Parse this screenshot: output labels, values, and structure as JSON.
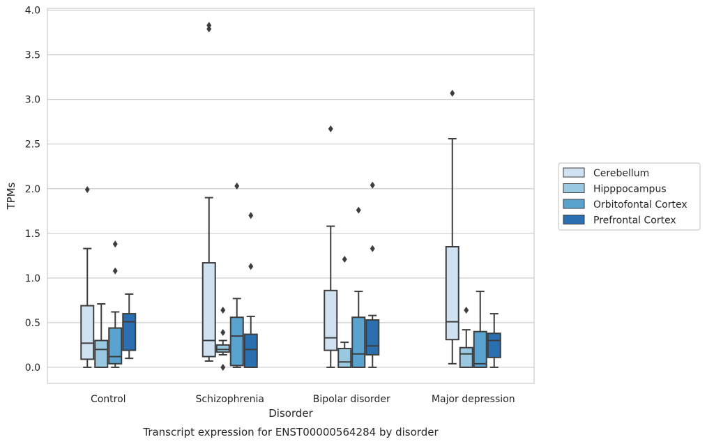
{
  "chart_data": {
    "type": "box",
    "title": "Transcript expression for ENST00000564284 by disorder",
    "xlabel": "Disorder",
    "ylabel": "TPMs",
    "ylim": [
      -0.18,
      4.02
    ],
    "yticks": [
      "0.0",
      "0.5",
      "1.0",
      "1.5",
      "2.0",
      "2.5",
      "3.0",
      "3.5",
      "4.0"
    ],
    "grid": "horizontal",
    "legend_position": "right",
    "categories": [
      "Control",
      "Schizophrenia",
      "Bipolar disorder",
      "Major depression"
    ],
    "series": [
      {
        "name": "Cerebellum",
        "color": "#d0e1f2",
        "boxes": [
          {
            "whisker_low": 0.0,
            "q1": 0.09,
            "median": 0.27,
            "q3": 0.69,
            "whisker_high": 1.33,
            "outliers": [
              1.99
            ]
          },
          {
            "whisker_low": 0.07,
            "q1": 0.12,
            "median": 0.3,
            "q3": 1.17,
            "whisker_high": 1.9,
            "outliers": [
              3.79,
              3.83
            ]
          },
          {
            "whisker_low": 0.0,
            "q1": 0.19,
            "median": 0.33,
            "q3": 0.86,
            "whisker_high": 1.58,
            "outliers": [
              2.67
            ]
          },
          {
            "whisker_low": 0.04,
            "q1": 0.31,
            "median": 0.51,
            "q3": 1.35,
            "whisker_high": 2.56,
            "outliers": [
              3.07
            ]
          }
        ]
      },
      {
        "name": "Hipppocampus",
        "color": "#9ac8e0",
        "boxes": [
          {
            "whisker_low": 0.0,
            "q1": 0.0,
            "median": 0.2,
            "q3": 0.3,
            "whisker_high": 0.71,
            "outliers": []
          },
          {
            "whisker_low": 0.14,
            "q1": 0.17,
            "median": 0.2,
            "q3": 0.25,
            "whisker_high": 0.3,
            "outliers": [
              0.0,
              0.39,
              0.64
            ]
          },
          {
            "whisker_low": 0.0,
            "q1": 0.0,
            "median": 0.06,
            "q3": 0.21,
            "whisker_high": 0.28,
            "outliers": [
              1.21
            ]
          },
          {
            "whisker_low": 0.0,
            "q1": 0.0,
            "median": 0.15,
            "q3": 0.22,
            "whisker_high": 0.42,
            "outliers": [
              0.64
            ]
          }
        ]
      },
      {
        "name": "Orbitofontal Cortex",
        "color": "#5ba3cf",
        "boxes": [
          {
            "whisker_low": 0.0,
            "q1": 0.04,
            "median": 0.12,
            "q3": 0.44,
            "whisker_high": 0.62,
            "outliers": [
              1.08,
              1.38
            ]
          },
          {
            "whisker_low": 0.0,
            "q1": 0.02,
            "median": 0.35,
            "q3": 0.56,
            "whisker_high": 0.77,
            "outliers": [
              2.03
            ]
          },
          {
            "whisker_low": 0.0,
            "q1": 0.0,
            "median": 0.15,
            "q3": 0.56,
            "whisker_high": 0.85,
            "outliers": [
              1.76
            ]
          },
          {
            "whisker_low": 0.0,
            "q1": 0.0,
            "median": 0.04,
            "q3": 0.4,
            "whisker_high": 0.85,
            "outliers": []
          }
        ]
      },
      {
        "name": "Prefrontal Cortex",
        "color": "#2a70b0",
        "boxes": [
          {
            "whisker_low": 0.1,
            "q1": 0.19,
            "median": 0.51,
            "q3": 0.6,
            "whisker_high": 0.82,
            "outliers": []
          },
          {
            "whisker_low": 0.0,
            "q1": 0.0,
            "median": 0.2,
            "q3": 0.37,
            "whisker_high": 0.57,
            "outliers": [
              1.13,
              1.7
            ]
          },
          {
            "whisker_low": 0.0,
            "q1": 0.14,
            "median": 0.24,
            "q3": 0.53,
            "whisker_high": 0.58,
            "outliers": [
              1.33,
              2.04
            ]
          },
          {
            "whisker_low": 0.0,
            "q1": 0.11,
            "median": 0.3,
            "q3": 0.38,
            "whisker_high": 0.6,
            "outliers": []
          }
        ]
      }
    ]
  }
}
